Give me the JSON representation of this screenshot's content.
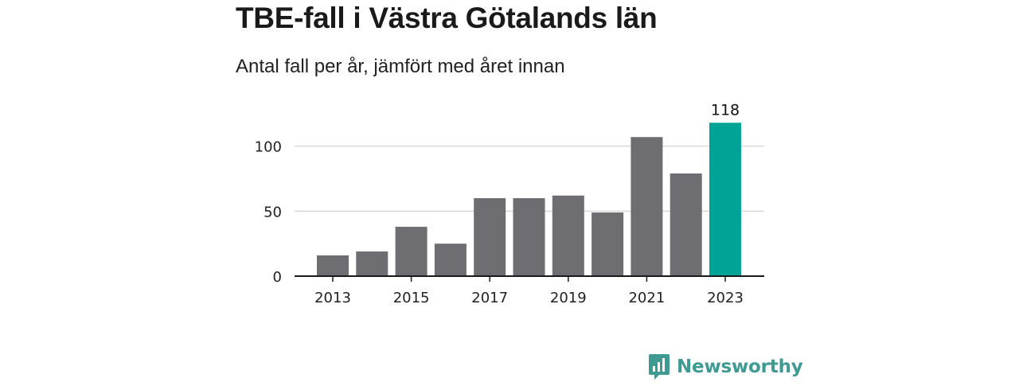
{
  "header": {
    "title": "TBE-fall i Västra Götalands län",
    "subtitle": "Antal fall per år, jämfört med året innan"
  },
  "branding": {
    "logo_text": "Newsworthy",
    "logo_icon": "bar-chart-speech-bubble-icon",
    "logo_color": "#3f9b92"
  },
  "colors": {
    "bar_default": "#6e6d72",
    "bar_highlight": "#00a396",
    "grid": "#d9d9d9",
    "axis": "#1a1a1a"
  },
  "chart_data": {
    "type": "bar",
    "categories": [
      "2013",
      "2014",
      "2015",
      "2016",
      "2017",
      "2018",
      "2019",
      "2020",
      "2021",
      "2022",
      "2023"
    ],
    "values": [
      16,
      19,
      38,
      25,
      60,
      60,
      62,
      49,
      107,
      79,
      118
    ],
    "highlight_index": 10,
    "x_tick_labels": [
      "2013",
      "2015",
      "2017",
      "2019",
      "2021",
      "2023"
    ],
    "y_ticks": [
      0,
      50,
      100
    ],
    "ylim": [
      0,
      120
    ],
    "data_labels": [
      {
        "index": 10,
        "text": "118"
      }
    ],
    "title": "TBE-fall i Västra Götalands län",
    "subtitle": "Antal fall per år, jämfört med året innan",
    "xlabel": "",
    "ylabel": "",
    "grid": true,
    "legend": "none"
  }
}
